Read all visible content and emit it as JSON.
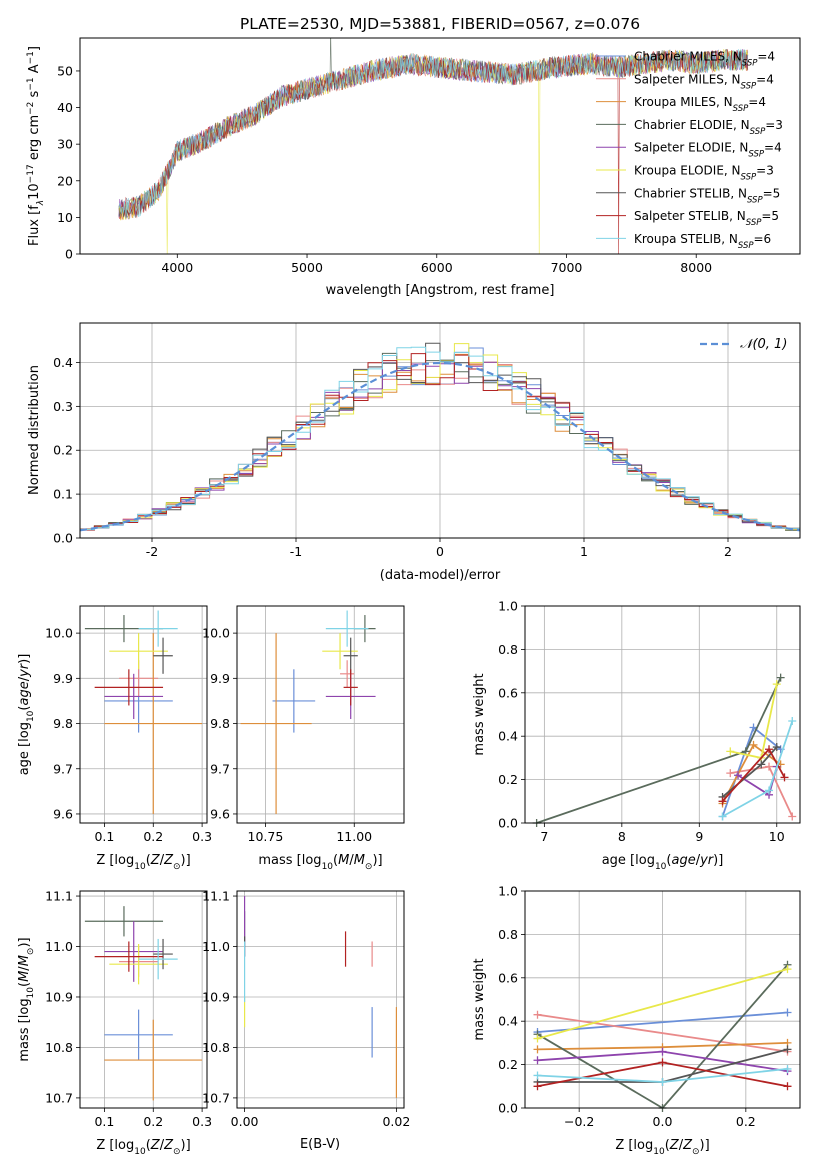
{
  "figure_title": "PLATE=2530, MJD=53881, FIBERID=0567, z=0.076",
  "colors": {
    "models": [
      "#6a8fd8",
      "#e98a8a",
      "#dd8e3b",
      "#5a6b5c",
      "#8e44ad",
      "#e8e84a",
      "#555555",
      "#b22222",
      "#7fd3e6"
    ]
  },
  "chart_data": [
    {
      "type": "line",
      "id": "spectrum",
      "xlabel": "wavelength [Angstrom, rest frame]",
      "ylabel": "Flux [f_λ 10^-17 erg cm^-2 s^-1 A^-1]",
      "ylabel_parts": {
        "a": "Flux [f",
        "b": "λ",
        "c": "10",
        "d": "−17",
        "e": " erg cm",
        "f": "−2",
        "g": " s",
        "h": "−1",
        "i": " A",
        "j": "−1",
        "k": "]"
      },
      "xlim": [
        3250,
        8800
      ],
      "ylim": [
        0,
        59
      ],
      "xticks": [
        4000,
        5000,
        6000,
        7000,
        8000
      ],
      "yticks": [
        0,
        10,
        20,
        30,
        40,
        50
      ],
      "grid": false,
      "legend_position": "upper right",
      "x_range": [
        3550,
        8400
      ],
      "continuum_knots": [
        [
          3550,
          12
        ],
        [
          3700,
          13
        ],
        [
          3850,
          17
        ],
        [
          3950,
          24
        ],
        [
          4000,
          28
        ],
        [
          4200,
          31
        ],
        [
          4400,
          35
        ],
        [
          4600,
          38
        ],
        [
          4800,
          43
        ],
        [
          5000,
          45
        ],
        [
          5200,
          47
        ],
        [
          5500,
          50
        ],
        [
          5800,
          52
        ],
        [
          6000,
          51
        ],
        [
          6300,
          50
        ],
        [
          6600,
          49
        ],
        [
          6900,
          51
        ],
        [
          7200,
          52
        ],
        [
          7400,
          51
        ],
        [
          7600,
          52
        ],
        [
          7800,
          53
        ],
        [
          8000,
          52
        ],
        [
          8200,
          53
        ],
        [
          8400,
          53
        ]
      ],
      "series": [
        {
          "name": "Chabrier MILES",
          "nssp": "4"
        },
        {
          "name": "Salpeter MILES",
          "nssp": "4"
        },
        {
          "name": "Kroupa MILES",
          "nssp": "4"
        },
        {
          "name": "Chabrier ELODIE",
          "nssp": "3"
        },
        {
          "name": "Salpeter ELODIE",
          "nssp": "4"
        },
        {
          "name": "Kroupa ELODIE",
          "nssp": "3"
        },
        {
          "name": "Chabrier STELIB",
          "nssp": "5"
        },
        {
          "name": "Salpeter STELIB",
          "nssp": "5"
        },
        {
          "name": "Kroupa STELIB",
          "nssp": "6"
        }
      ]
    },
    {
      "type": "area",
      "id": "residuals",
      "xlabel": "(data-model)/error",
      "ylabel": "Normed distribution",
      "xlim": [
        -2.5,
        2.5
      ],
      "ylim": [
        0,
        0.49
      ],
      "xticks": [
        -2,
        -1,
        0,
        1,
        2
      ],
      "yticks": [
        0.0,
        0.1,
        0.2,
        0.3,
        0.4
      ],
      "grid": true,
      "legend_position": "upper right",
      "legend_label": "𝒩(0, 1)",
      "bins": {
        "start": -2.5,
        "width": 0.1,
        "count": 50
      }
    },
    {
      "type": "scatter",
      "id": "age_vs_Z",
      "xlabel": "Z [log10(Z/Z⊙)]",
      "ylabel": "age  [log10(age/yr)]",
      "xlim": [
        0.05,
        0.31
      ],
      "ylim": [
        9.58,
        10.06
      ],
      "xticks": [
        0.1,
        0.2,
        0.3
      ],
      "ytick_labels": [
        "9.6",
        "9.7",
        "9.8",
        "9.9",
        "10.0"
      ],
      "yticks": [
        9.6,
        9.7,
        9.8,
        9.9,
        10.0
      ],
      "grid": true,
      "points": [
        {
          "x": 0.17,
          "xerr": 0.07,
          "y": 9.85,
          "yerr": 0.07
        },
        {
          "x": 0.17,
          "xerr": 0.04,
          "y": 9.9,
          "yerr": 0.04
        },
        {
          "x": 0.2,
          "xerr": 0.1,
          "y": 9.8,
          "yerr": 0.2
        },
        {
          "x": 0.14,
          "xerr": 0.08,
          "y": 10.01,
          "yerr": 0.03
        },
        {
          "x": 0.16,
          "xerr": 0.06,
          "y": 9.86,
          "yerr": 0.05
        },
        {
          "x": 0.17,
          "xerr": 0.06,
          "y": 9.96,
          "yerr": 0.04
        },
        {
          "x": 0.22,
          "xerr": 0.02,
          "y": 9.95,
          "yerr": 0.04
        },
        {
          "x": 0.15,
          "xerr": 0.07,
          "y": 9.88,
          "yerr": 0.04
        },
        {
          "x": 0.21,
          "xerr": 0.04,
          "y": 10.01,
          "yerr": 0.04
        }
      ]
    },
    {
      "type": "scatter",
      "id": "age_vs_mass",
      "xlabel": "mass [log10(M/M⊙)]",
      "ylabel": "",
      "xlim": [
        10.67,
        11.14
      ],
      "ylim": [
        9.58,
        10.06
      ],
      "xticks": [
        10.75,
        11.0
      ],
      "xtick_labels": [
        "10.75",
        "11.00"
      ],
      "yticks": [
        9.6,
        9.7,
        9.8,
        9.9,
        10.0
      ],
      "ytick_labels": [
        "9.6",
        "9.7",
        "9.8",
        "9.9",
        "10.0"
      ],
      "grid": true,
      "points": [
        {
          "x": 10.83,
          "xerr": 0.06,
          "y": 9.85,
          "yerr": 0.07
        },
        {
          "x": 10.98,
          "xerr": 0.02,
          "y": 9.91,
          "yerr": 0.03
        },
        {
          "x": 10.78,
          "xerr": 0.1,
          "y": 9.8,
          "yerr": 0.2
        },
        {
          "x": 11.03,
          "xerr": 0.03,
          "y": 10.01,
          "yerr": 0.03
        },
        {
          "x": 10.99,
          "xerr": 0.07,
          "y": 9.86,
          "yerr": 0.05
        },
        {
          "x": 10.96,
          "xerr": 0.05,
          "y": 9.96,
          "yerr": 0.04
        },
        {
          "x": 10.99,
          "xerr": 0.02,
          "y": 9.95,
          "yerr": 0.04
        },
        {
          "x": 10.99,
          "xerr": 0.02,
          "y": 9.88,
          "yerr": 0.04
        },
        {
          "x": 10.98,
          "xerr": 0.06,
          "y": 10.01,
          "yerr": 0.04
        }
      ]
    },
    {
      "type": "line",
      "id": "weight_vs_age",
      "xlabel": "age  [log10(age/yr)]",
      "ylabel": "mass weight",
      "xlim": [
        6.75,
        10.3
      ],
      "ylim": [
        0.0,
        1.0
      ],
      "xticks": [
        7,
        8,
        9,
        10
      ],
      "yticks": [
        0.0,
        0.2,
        0.4,
        0.6,
        0.8,
        1.0
      ],
      "grid": true,
      "series": [
        {
          "x": [
            9.3,
            9.7,
            10.05
          ],
          "y": [
            0.03,
            0.44,
            0.34
          ]
        },
        {
          "x": [
            9.4,
            9.9,
            10.2
          ],
          "y": [
            0.23,
            0.26,
            0.03
          ]
        },
        {
          "x": [
            9.3,
            9.7,
            10.05
          ],
          "y": [
            0.09,
            0.36,
            0.27
          ]
        },
        {
          "x": [
            6.9,
            9.6,
            10.05
          ],
          "y": [
            0.0,
            0.33,
            0.67
          ]
        },
        {
          "x": [
            9.5,
            9.9,
            10.0
          ],
          "y": [
            0.22,
            0.13,
            0.26
          ]
        },
        {
          "x": [
            9.4,
            9.8,
            10.0
          ],
          "y": [
            0.33,
            0.3,
            0.64
          ]
        },
        {
          "x": [
            9.3,
            9.8,
            10.0
          ],
          "y": [
            0.12,
            0.27,
            0.35
          ]
        },
        {
          "x": [
            9.3,
            9.9,
            10.1
          ],
          "y": [
            0.1,
            0.34,
            0.21
          ]
        },
        {
          "x": [
            9.3,
            9.9,
            10.2
          ],
          "y": [
            0.03,
            0.15,
            0.47
          ]
        }
      ]
    },
    {
      "type": "scatter",
      "id": "mass_vs_Z",
      "xlabel": "Z [log10(Z/Z⊙)]",
      "ylabel": "mass [log10(M/M⊙)]",
      "xlim": [
        0.05,
        0.31
      ],
      "ylim": [
        10.68,
        11.11
      ],
      "xticks": [
        0.1,
        0.2,
        0.3
      ],
      "yticks": [
        10.7,
        10.8,
        10.9,
        11.0,
        11.1
      ],
      "ytick_labels": [
        "10.7",
        "10.8",
        "10.9",
        "11.0",
        "11.1"
      ],
      "grid": true,
      "points": [
        {
          "x": 0.17,
          "xerr": 0.07,
          "y": 10.825,
          "yerr": 0.05
        },
        {
          "x": 0.17,
          "xerr": 0.04,
          "y": 10.97,
          "yerr": 0.03
        },
        {
          "x": 0.2,
          "xerr": 0.1,
          "y": 10.775,
          "yerr": 0.08
        },
        {
          "x": 0.14,
          "xerr": 0.08,
          "y": 11.05,
          "yerr": 0.03
        },
        {
          "x": 0.16,
          "xerr": 0.06,
          "y": 10.99,
          "yerr": 0.06
        },
        {
          "x": 0.17,
          "xerr": 0.06,
          "y": 10.965,
          "yerr": 0.04
        },
        {
          "x": 0.22,
          "xerr": 0.02,
          "y": 10.985,
          "yerr": 0.03
        },
        {
          "x": 0.15,
          "xerr": 0.07,
          "y": 10.98,
          "yerr": 0.03
        },
        {
          "x": 0.21,
          "xerr": 0.04,
          "y": 10.975,
          "yerr": 0.04
        }
      ]
    },
    {
      "type": "scatter",
      "id": "mass_vs_ebv",
      "xlabel": "E(B-V)",
      "ylabel": "",
      "xlim": [
        -0.001,
        0.021
      ],
      "ylim": [
        10.68,
        11.11
      ],
      "xticks": [
        0.0,
        0.02
      ],
      "xtick_labels": [
        "0.00",
        "0.02"
      ],
      "yticks": [
        10.7,
        10.8,
        10.9,
        11.0,
        11.1
      ],
      "ytick_labels": [
        "10.7",
        "10.8",
        "10.9",
        "11.0",
        "11.1"
      ],
      "grid": true,
      "points": [
        {
          "x": 0.0168,
          "y": 10.83,
          "yerr": 0.05
        },
        {
          "x": 0.0168,
          "y": 10.985,
          "yerr": 0.025
        },
        {
          "x": 0.02,
          "y": 10.79,
          "yerr": 0.09
        },
        {
          "x": 0.0,
          "y": 11.04,
          "yerr": 0.03
        },
        {
          "x": 0.0,
          "y": 11.04,
          "yerr": 0.06
        },
        {
          "x": 0.0,
          "y": 10.87,
          "yerr": 0.03
        },
        {
          "x": 0.0,
          "y": 11.0,
          "yerr": 0.02
        },
        {
          "x": 0.0133,
          "y": 10.995,
          "yerr": 0.035
        },
        {
          "x": 0.0,
          "y": 10.95,
          "yerr": 0.06
        }
      ]
    },
    {
      "type": "line",
      "id": "weight_vs_Z",
      "xlabel": "Z [log10(Z/Z⊙)]",
      "ylabel": "mass weight",
      "xlim": [
        -0.33,
        0.33
      ],
      "ylim": [
        0.0,
        1.0
      ],
      "xticks": [
        -0.2,
        0.0,
        0.2
      ],
      "xtick_labels": [
        "−0.2",
        "0.0",
        "0.2"
      ],
      "yticks": [
        0.0,
        0.2,
        0.4,
        0.6,
        0.8,
        1.0
      ],
      "grid": true,
      "series": [
        {
          "x": [
            -0.3,
            0.3
          ],
          "y": [
            0.35,
            0.44
          ]
        },
        {
          "x": [
            -0.3,
            0.3
          ],
          "y": [
            0.43,
            0.26
          ]
        },
        {
          "x": [
            -0.3,
            0.0,
            0.3
          ],
          "y": [
            0.27,
            0.28,
            0.3
          ]
        },
        {
          "x": [
            -0.3,
            0.0,
            0.3
          ],
          "y": [
            0.34,
            0.0,
            0.66
          ]
        },
        {
          "x": [
            -0.3,
            0.0,
            0.3
          ],
          "y": [
            0.22,
            0.26,
            0.17
          ]
        },
        {
          "x": [
            -0.3,
            0.3
          ],
          "y": [
            0.32,
            0.64
          ]
        },
        {
          "x": [
            -0.3,
            0.0,
            0.3
          ],
          "y": [
            0.12,
            0.12,
            0.27
          ]
        },
        {
          "x": [
            -0.3,
            0.0,
            0.3
          ],
          "y": [
            0.1,
            0.21,
            0.1
          ]
        },
        {
          "x": [
            -0.3,
            0.0,
            0.3
          ],
          "y": [
            0.15,
            0.12,
            0.18
          ]
        }
      ]
    }
  ]
}
